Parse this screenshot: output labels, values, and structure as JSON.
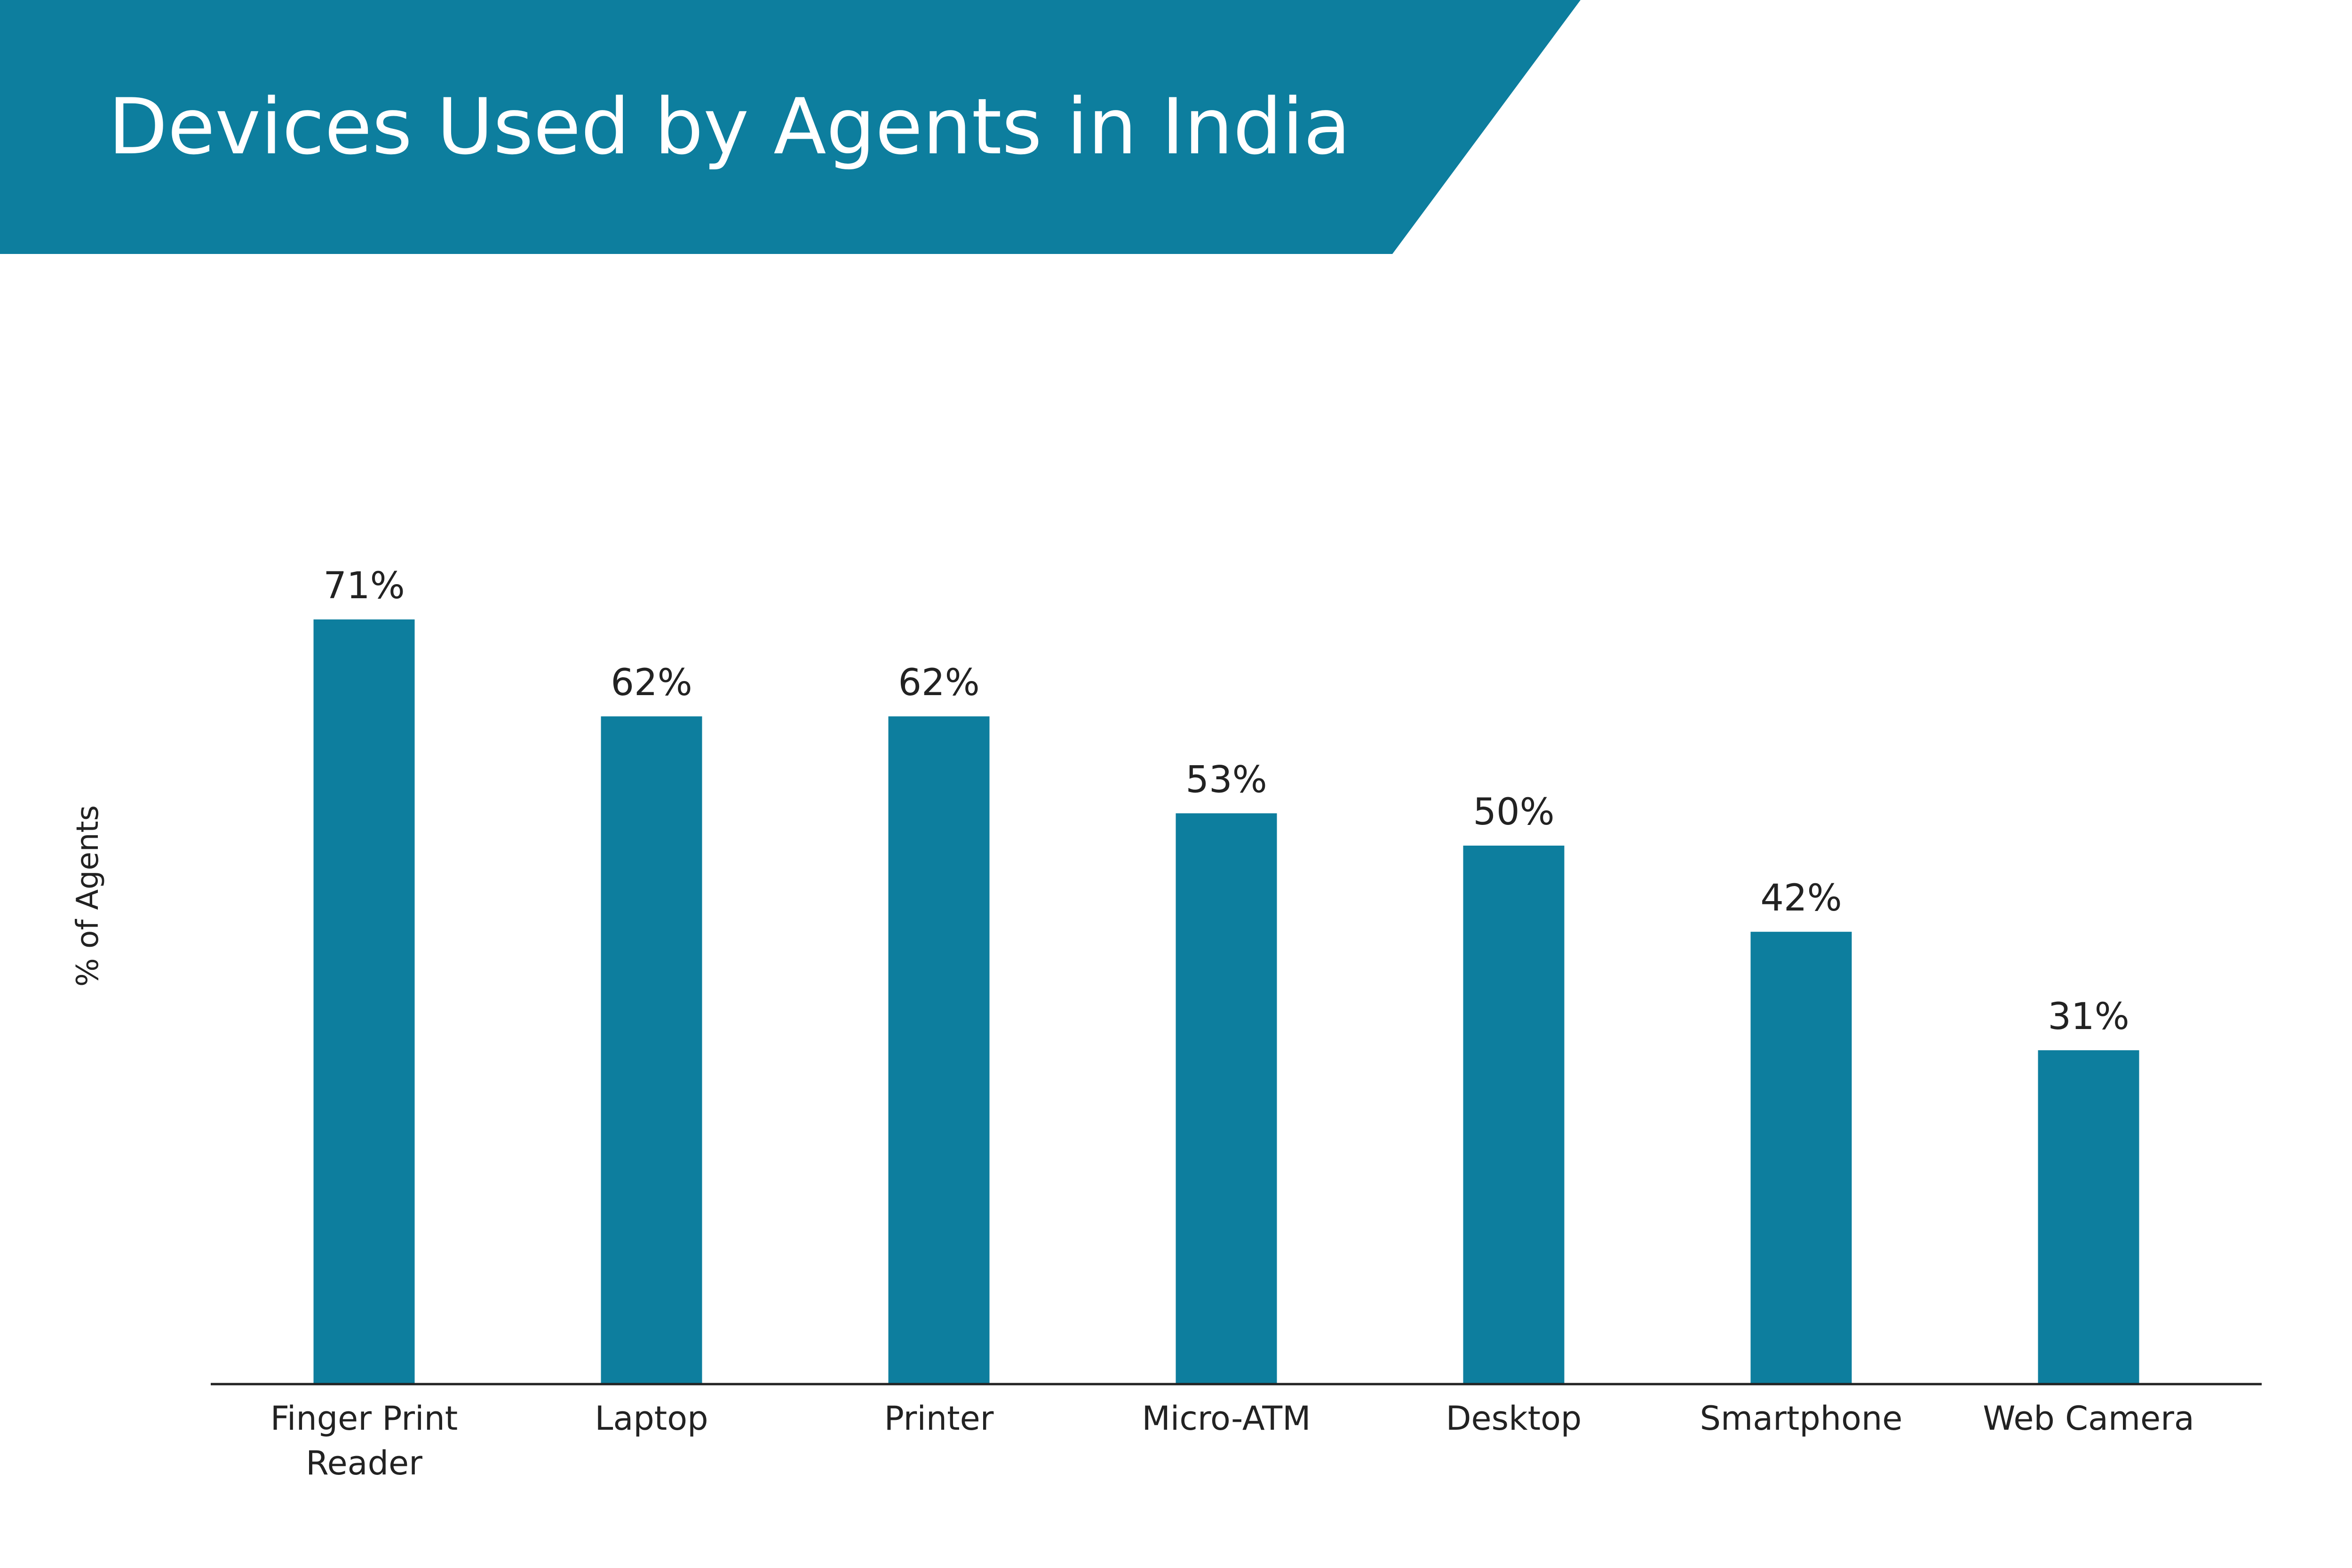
{
  "header": {
    "title": "Devices Used by Agents in India"
  },
  "colors": {
    "brand": "#0D7E9E",
    "bar": "#0D7E9E",
    "text": "#222222",
    "axis": "#222222",
    "background": "#FFFFFF"
  },
  "chart_data": {
    "type": "bar",
    "title": "Devices Used by Agents in India",
    "xlabel": "",
    "ylabel": "% of Agents",
    "categories": [
      "Finger Print Reader",
      "Laptop",
      "Printer",
      "Micro-ATM",
      "Desktop",
      "Smartphone",
      "Web Camera"
    ],
    "category_lines": [
      [
        "Finger Print",
        "Reader"
      ],
      [
        "Laptop"
      ],
      [
        "Printer"
      ],
      [
        "Micro-ATM"
      ],
      [
        "Desktop"
      ],
      [
        "Smartphone"
      ],
      [
        "Web Camera"
      ]
    ],
    "values": [
      71,
      62,
      62,
      53,
      50,
      42,
      31
    ],
    "data_labels": [
      "71%",
      "62%",
      "62%",
      "53%",
      "50%",
      "42%",
      "31%"
    ],
    "ylim": [
      0,
      100
    ],
    "grid": false,
    "legend": "none"
  }
}
